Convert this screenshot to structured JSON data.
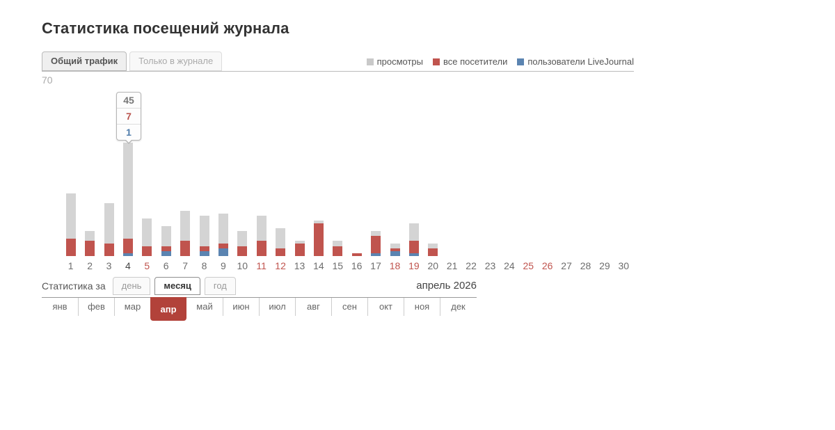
{
  "title": "Статистика посещений журнала",
  "traffic_tabs": [
    {
      "label": "Общий трафик",
      "active": true
    },
    {
      "label": "Только в журнале",
      "active": false
    }
  ],
  "legend": [
    {
      "name": "views",
      "label": "просмотры",
      "color": "#c9c9c9"
    },
    {
      "name": "visitors",
      "label": "все посетители",
      "color": "#c0544e"
    },
    {
      "name": "users",
      "label": "пользователи LiveJournal",
      "color": "#5b84b1"
    }
  ],
  "y_axis_max": "70",
  "chart_data": {
    "type": "bar",
    "title": "Статистика посещений журнала",
    "x": [
      1,
      2,
      3,
      4,
      5,
      6,
      7,
      8,
      9,
      10,
      11,
      12,
      13,
      14,
      15,
      16,
      17,
      18,
      19,
      20,
      21,
      22,
      23,
      24,
      25,
      26,
      27,
      28,
      29,
      30
    ],
    "series": [
      {
        "name": "просмотры",
        "color": "#d4d4d4",
        "values": [
          25,
          10,
          21,
          45,
          15,
          12,
          18,
          16,
          17,
          10,
          16,
          11,
          6,
          14,
          6,
          1,
          10,
          5,
          13,
          5,
          0,
          0,
          0,
          0,
          0,
          0,
          0,
          0,
          0,
          0
        ]
      },
      {
        "name": "все посетители",
        "color": "#c0544e",
        "values": [
          7,
          6,
          5,
          7,
          4,
          4,
          6,
          4,
          5,
          4,
          6,
          3,
          5,
          13,
          4,
          1,
          8,
          3,
          6,
          3,
          0,
          0,
          0,
          0,
          0,
          0,
          0,
          0,
          0,
          0
        ]
      },
      {
        "name": "пользователи LiveJournal",
        "color": "#5b84b1",
        "values": [
          0,
          0,
          0,
          1,
          0,
          2,
          0,
          2,
          3,
          0,
          0,
          0,
          0,
          0,
          0,
          0,
          1,
          2,
          1,
          0,
          0,
          0,
          0,
          0,
          0,
          0,
          0,
          0,
          0,
          0
        ]
      }
    ],
    "ylim": [
      0,
      70
    ],
    "xlabel": "",
    "ylabel": "",
    "grid": false,
    "legend_position": "top-right",
    "weekend_days": [
      5,
      11,
      12,
      18,
      19,
      25,
      26
    ],
    "selected_day": 4
  },
  "tooltip": {
    "day": 4,
    "views": "45",
    "visitors": "7",
    "users": "1"
  },
  "period": {
    "label": "Статистика за",
    "options": [
      {
        "label": "день",
        "active": false
      },
      {
        "label": "месяц",
        "active": true
      },
      {
        "label": "год",
        "active": false
      }
    ],
    "current": "апрель 2026"
  },
  "months": [
    {
      "label": "янв",
      "active": false
    },
    {
      "label": "фев",
      "active": false
    },
    {
      "label": "мар",
      "active": false
    },
    {
      "label": "апр",
      "active": true
    },
    {
      "label": "май",
      "active": false
    },
    {
      "label": "июн",
      "active": false
    },
    {
      "label": "июл",
      "active": false
    },
    {
      "label": "авг",
      "active": false
    },
    {
      "label": "сен",
      "active": false
    },
    {
      "label": "окт",
      "active": false
    },
    {
      "label": "ноя",
      "active": false
    },
    {
      "label": "дек",
      "active": false
    }
  ]
}
